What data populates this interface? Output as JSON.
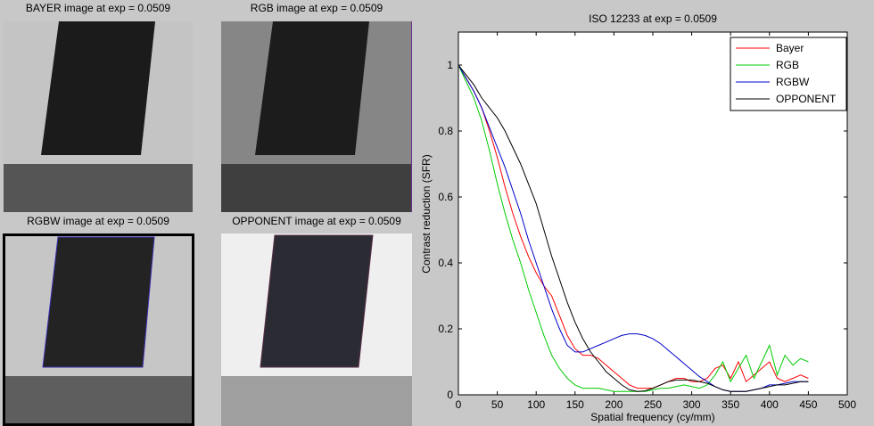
{
  "panels": [
    {
      "title": "BAYER image at exp = 0.0509"
    },
    {
      "title": "RGB image at exp = 0.0509"
    },
    {
      "title": "RGBW image at exp = 0.0509"
    },
    {
      "title": "OPPONENT image at exp = 0.0509"
    }
  ],
  "chart_data": {
    "type": "line",
    "title": "ISO 12233 at exp = 0.0509",
    "xlabel": "Spatial frequency (cy/mm)",
    "ylabel": "Contrast reduction (SFR)",
    "xlim": [
      0,
      500
    ],
    "ylim": [
      0,
      1.1
    ],
    "xticks": [
      "0",
      "50",
      "100",
      "150",
      "200",
      "250",
      "300",
      "350",
      "400",
      "450",
      "500"
    ],
    "yticks": [
      "0",
      "0.2",
      "0.4",
      "0.6",
      "0.8",
      "1"
    ],
    "grid": false,
    "legend_position": "top-right",
    "series": [
      {
        "name": "Bayer",
        "color": "#ff0000",
        "x": [
          0,
          10,
          20,
          30,
          40,
          50,
          60,
          70,
          80,
          90,
          100,
          110,
          120,
          130,
          140,
          150,
          160,
          170,
          180,
          190,
          200,
          210,
          220,
          230,
          240,
          250,
          260,
          270,
          280,
          290,
          300,
          310,
          320,
          330,
          340,
          350,
          360,
          370,
          380,
          390,
          400,
          410,
          420,
          430,
          440,
          450
        ],
        "y": [
          1,
          0.96,
          0.92,
          0.87,
          0.8,
          0.72,
          0.63,
          0.55,
          0.48,
          0.42,
          0.37,
          0.33,
          0.3,
          0.24,
          0.18,
          0.14,
          0.12,
          0.12,
          0.11,
          0.09,
          0.07,
          0.05,
          0.03,
          0.02,
          0.02,
          0.02,
          0.03,
          0.04,
          0.05,
          0.05,
          0.04,
          0.04,
          0.05,
          0.08,
          0.09,
          0.05,
          0.1,
          0.04,
          0.06,
          0.08,
          0.1,
          0.05,
          0.04,
          0.05,
          0.06,
          0.05
        ]
      },
      {
        "name": "RGB",
        "color": "#00cc00",
        "x": [
          0,
          10,
          20,
          30,
          40,
          50,
          60,
          70,
          80,
          90,
          100,
          110,
          120,
          130,
          140,
          150,
          160,
          170,
          180,
          190,
          200,
          210,
          220,
          230,
          240,
          250,
          260,
          270,
          280,
          290,
          300,
          310,
          320,
          330,
          340,
          350,
          360,
          370,
          380,
          390,
          400,
          410,
          420,
          430,
          440,
          450
        ],
        "y": [
          1,
          0.95,
          0.9,
          0.83,
          0.74,
          0.64,
          0.55,
          0.47,
          0.4,
          0.32,
          0.25,
          0.18,
          0.12,
          0.08,
          0.05,
          0.03,
          0.02,
          0.02,
          0.02,
          0.015,
          0.01,
          0.01,
          0.01,
          0.01,
          0.01,
          0.015,
          0.02,
          0.02,
          0.025,
          0.03,
          0.025,
          0.02,
          0.03,
          0.06,
          0.1,
          0.04,
          0.08,
          0.12,
          0.05,
          0.1,
          0.15,
          0.06,
          0.12,
          0.09,
          0.11,
          0.1
        ]
      },
      {
        "name": "RGBW",
        "color": "#0000cc",
        "x": [
          0,
          10,
          20,
          30,
          40,
          50,
          60,
          70,
          80,
          90,
          100,
          110,
          120,
          130,
          140,
          150,
          160,
          170,
          180,
          190,
          200,
          210,
          220,
          230,
          240,
          250,
          260,
          270,
          280,
          290,
          300,
          310,
          320,
          330,
          340,
          350,
          360,
          370,
          380,
          390,
          400,
          410,
          420,
          430,
          440,
          450
        ],
        "y": [
          1,
          0.96,
          0.92,
          0.87,
          0.81,
          0.75,
          0.69,
          0.62,
          0.55,
          0.47,
          0.4,
          0.33,
          0.26,
          0.2,
          0.15,
          0.13,
          0.13,
          0.14,
          0.15,
          0.16,
          0.17,
          0.18,
          0.185,
          0.185,
          0.18,
          0.17,
          0.155,
          0.135,
          0.115,
          0.095,
          0.075,
          0.055,
          0.04,
          0.025,
          0.015,
          0.01,
          0.01,
          0.01,
          0.015,
          0.02,
          0.03,
          0.03,
          0.035,
          0.04,
          0.04,
          0.04
        ]
      },
      {
        "name": "OPPONENT",
        "color": "#000000",
        "x": [
          0,
          10,
          20,
          30,
          40,
          50,
          60,
          70,
          80,
          90,
          100,
          110,
          120,
          130,
          140,
          150,
          160,
          170,
          180,
          190,
          200,
          210,
          220,
          230,
          240,
          250,
          260,
          270,
          280,
          290,
          300,
          310,
          320,
          330,
          340,
          350,
          360,
          370,
          380,
          390,
          400,
          410,
          420,
          430,
          440,
          450
        ],
        "y": [
          1,
          0.97,
          0.94,
          0.9,
          0.87,
          0.84,
          0.8,
          0.75,
          0.7,
          0.64,
          0.58,
          0.5,
          0.42,
          0.35,
          0.28,
          0.22,
          0.17,
          0.13,
          0.1,
          0.07,
          0.05,
          0.03,
          0.015,
          0.01,
          0.012,
          0.02,
          0.03,
          0.04,
          0.045,
          0.045,
          0.045,
          0.04,
          0.035,
          0.025,
          0.015,
          0.01,
          0.01,
          0.01,
          0.015,
          0.02,
          0.025,
          0.03,
          0.03,
          0.035,
          0.04,
          0.04
        ]
      }
    ]
  }
}
